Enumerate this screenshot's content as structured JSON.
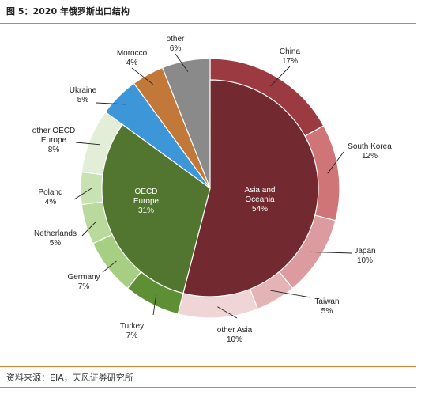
{
  "title": "图 5：2020 年俄罗斯出口结构",
  "source": "资料来源：EIA，天风证券研究所",
  "colors": {
    "accent_rule": "#d9822b",
    "asia_inner": "#722a30",
    "oecd_inner": "#52752f",
    "ukraine": "#3c96d8",
    "morocco": "#c27839",
    "other": "#8a8a8a",
    "china": "#9c3a42",
    "south_korea": "#cf7578",
    "japan": "#dc9b9e",
    "taiwan": "#e4b3b5",
    "other_asia": "#efd5d6",
    "turkey": "#5e8f35",
    "germany": "#a7cf84",
    "netherlands": "#b9da9c",
    "poland": "#c9e2b4",
    "other_oecd_europe": "#e2eed7"
  },
  "chart_data": {
    "type": "pie",
    "subtype": "nested-donut",
    "start_angle_deg": 0,
    "direction": "clockwise",
    "outer_ring": [
      {
        "name_lines": [
          "China"
        ],
        "value_label": "17%",
        "value": 17,
        "color_key": "china"
      },
      {
        "name_lines": [
          "South Korea"
        ],
        "value_label": "12%",
        "value": 12,
        "color_key": "south_korea"
      },
      {
        "name_lines": [
          "Japan"
        ],
        "value_label": "10%",
        "value": 10,
        "color_key": "japan"
      },
      {
        "name_lines": [
          "Taiwan"
        ],
        "value_label": "5%",
        "value": 5,
        "color_key": "taiwan"
      },
      {
        "name_lines": [
          "other Asia"
        ],
        "value_label": "10%",
        "value": 10,
        "color_key": "other_asia"
      },
      {
        "name_lines": [
          "Turkey"
        ],
        "value_label": "7%",
        "value": 7,
        "color_key": "turkey"
      },
      {
        "name_lines": [
          "Germany"
        ],
        "value_label": "7%",
        "value": 7,
        "color_key": "germany"
      },
      {
        "name_lines": [
          "Netherlands"
        ],
        "value_label": "5%",
        "value": 5,
        "color_key": "netherlands"
      },
      {
        "name_lines": [
          "Poland"
        ],
        "value_label": "4%",
        "value": 4,
        "color_key": "poland"
      },
      {
        "name_lines": [
          "other OECD",
          "Europe"
        ],
        "value_label": "8%",
        "value": 8,
        "color_key": "other_oecd_europe"
      },
      {
        "name_lines": [
          "Ukraine"
        ],
        "value_label": "5%",
        "value": 5,
        "color_key": "ukraine"
      },
      {
        "name_lines": [
          "Morocco"
        ],
        "value_label": "4%",
        "value": 4,
        "color_key": "morocco"
      },
      {
        "name_lines": [
          "other"
        ],
        "value_label": "6%",
        "value": 6,
        "color_key": "other"
      }
    ],
    "inner_pie": [
      {
        "name_lines": [
          "Asia and",
          "Oceania"
        ],
        "value_label": "54%",
        "value": 54,
        "color_key": "asia_inner"
      },
      {
        "name_lines": [
          "OECD",
          "Europe"
        ],
        "value_label": "31%",
        "value": 31,
        "color_key": "oecd_inner"
      }
    ]
  }
}
